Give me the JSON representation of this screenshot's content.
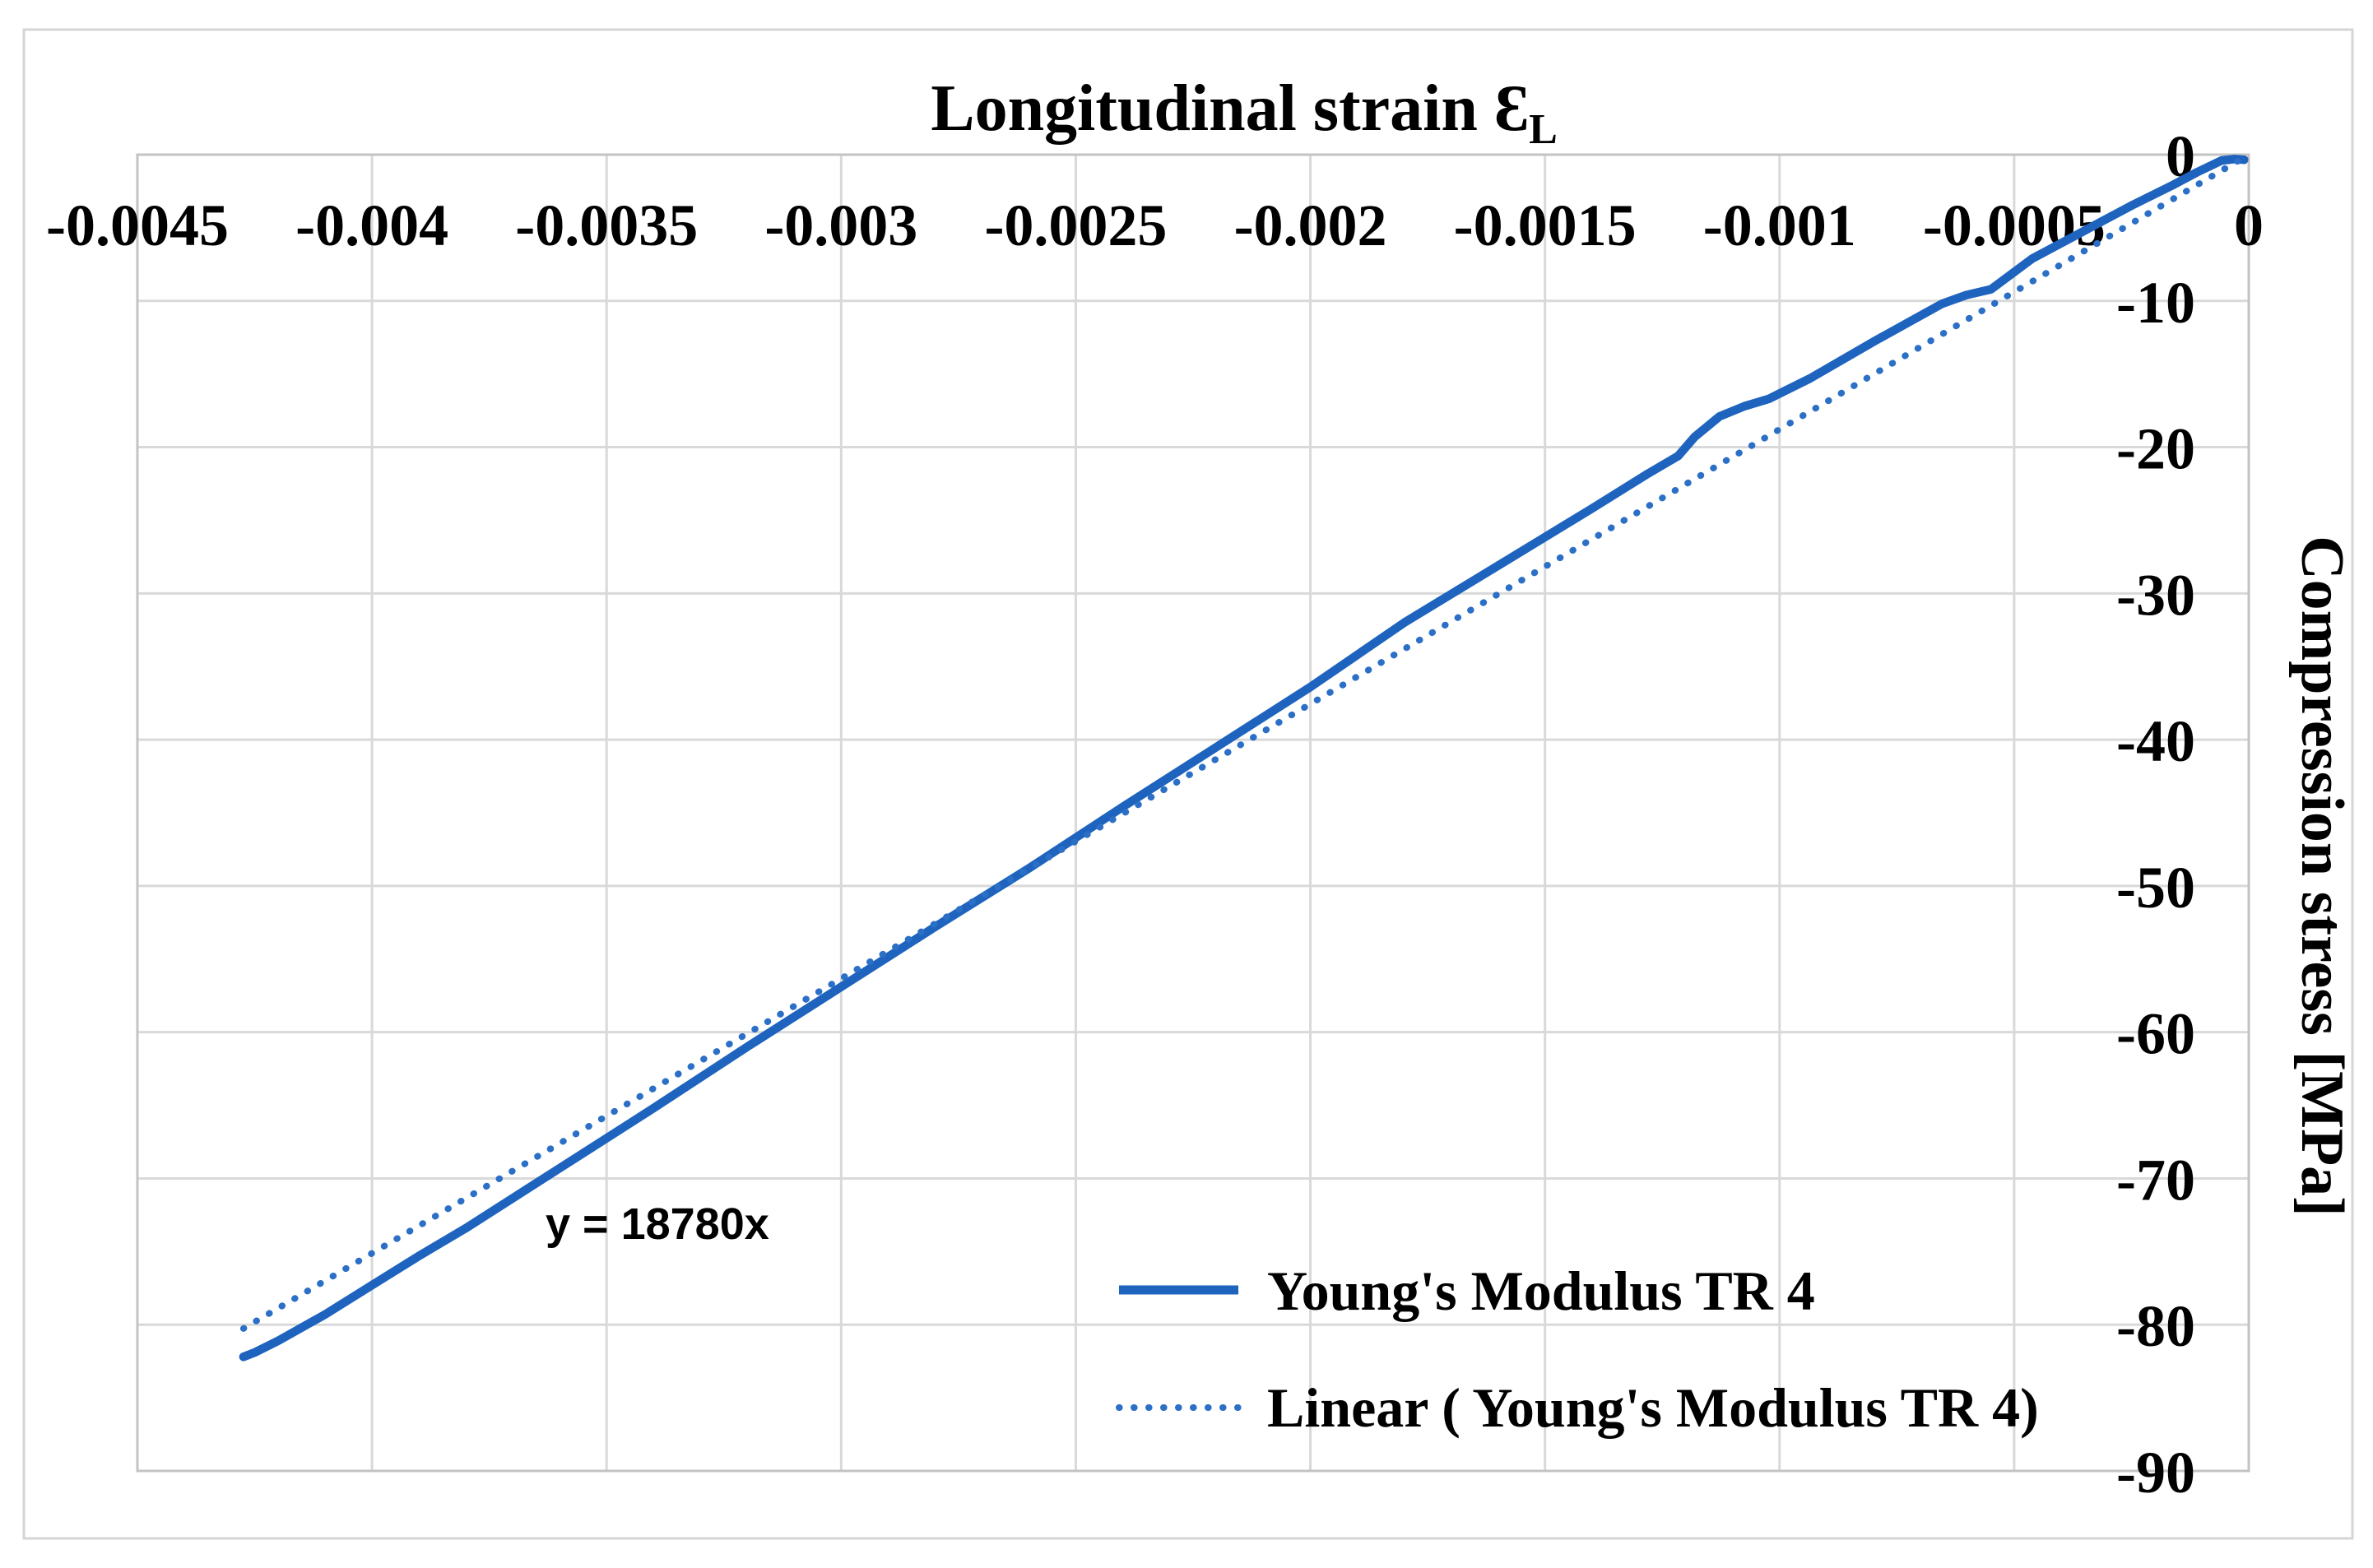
{
  "colors": {
    "background": "#ffffff",
    "outer_border": "#d5d5d5",
    "plot_border": "#c3c3c3",
    "gridline": "#d9d9d9",
    "text": "#000000",
    "series_solid_blue": "#1e64be",
    "series_dotted_blue": "#2b6fc6"
  },
  "chart_data": {
    "type": "line",
    "title": {
      "text": "Longitudinal strain ",
      "symbol": "Ɛ",
      "subscript": "L"
    },
    "x_axis": {
      "label_position": "top",
      "min": -0.0045,
      "max": 0,
      "ticks": [
        -0.0045,
        -0.004,
        -0.0035,
        -0.003,
        -0.0025,
        -0.002,
        -0.0015,
        -0.001,
        -0.0005,
        0
      ],
      "tick_labels": [
        "-0.0045",
        "-0.004",
        "-0.0035",
        "-0.003",
        "-0.0025",
        "-0.002",
        "-0.0015",
        "-0.001",
        "-0.0005",
        "0"
      ]
    },
    "y_axis": {
      "title": "Compression stress [MPa]",
      "side": "right",
      "min": -90,
      "max": 0,
      "ticks": [
        0,
        -10,
        -20,
        -30,
        -40,
        -50,
        -60,
        -70,
        -80,
        -90
      ],
      "tick_labels": [
        "0",
        "-10",
        "-20",
        "-30",
        "-40",
        "-50",
        "-60",
        "-70",
        "-80",
        "-90"
      ]
    },
    "grid": "both",
    "equation_label": "y = 18780x",
    "series": [
      {
        "name": "Young's Modulus TR 4",
        "style": "solid",
        "color_key": "series_solid_blue",
        "points": [
          [
            -0.004274,
            -82.2
          ],
          [
            -0.00425,
            -81.9
          ],
          [
            -0.0042,
            -81.1
          ],
          [
            -0.0041,
            -79.3
          ],
          [
            -0.004,
            -77.3
          ],
          [
            -0.0039,
            -75.3
          ],
          [
            -0.0038,
            -73.4
          ],
          [
            -0.0036,
            -69.3
          ],
          [
            -0.0034,
            -65.2
          ],
          [
            -0.0032,
            -61.0
          ],
          [
            -0.003,
            -56.9
          ],
          [
            -0.0028,
            -52.8
          ],
          [
            -0.0026,
            -48.8
          ],
          [
            -0.0024,
            -44.6
          ],
          [
            -0.0022,
            -40.5
          ],
          [
            -0.002,
            -36.4
          ],
          [
            -0.0018,
            -32.0
          ],
          [
            -0.0016,
            -28.1
          ],
          [
            -0.0014,
            -24.2
          ],
          [
            -0.00128,
            -21.8
          ],
          [
            -0.001216,
            -20.6
          ],
          [
            -0.001181,
            -19.3
          ],
          [
            -0.001128,
            -17.9
          ],
          [
            -0.001075,
            -17.2
          ],
          [
            -0.001023,
            -16.7
          ],
          [
            -0.000935,
            -15.3
          ],
          [
            -0.000795,
            -12.7
          ],
          [
            -0.000654,
            -10.2
          ],
          [
            -0.000602,
            -9.6
          ],
          [
            -0.000549,
            -9.2
          ],
          [
            -0.000461,
            -7.1
          ],
          [
            -0.000356,
            -5.3
          ],
          [
            -0.000251,
            -3.5
          ],
          [
            -0.000163,
            -2.1
          ],
          [
            -0.00011,
            -1.2
          ],
          [
            -5.8e-05,
            -0.4
          ],
          [
            -3e-05,
            -0.3
          ],
          [
            -1e-05,
            -0.35
          ]
        ]
      },
      {
        "name": "Linear ( Young's Modulus TR 4)",
        "style": "dotted",
        "color_key": "series_dotted_blue",
        "trendline": {
          "slope": 18780,
          "intercept": 0,
          "x_range": [
            -0.004274,
            -1.4e-05
          ]
        }
      }
    ],
    "legend": {
      "position": "inside-bottom-right",
      "items": [
        {
          "label": "Young's Modulus TR 4",
          "marker": "solid-line"
        },
        {
          "label": "Linear ( Young's Modulus TR 4)",
          "marker": "dotted-line"
        }
      ]
    }
  }
}
